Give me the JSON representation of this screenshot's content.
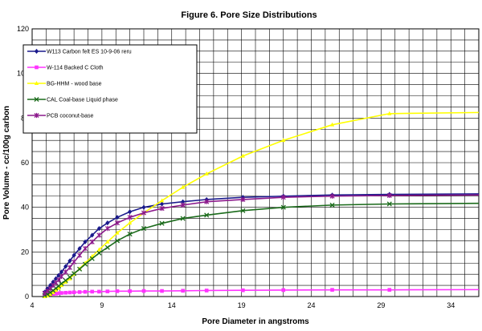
{
  "chart_data": {
    "type": "line",
    "title": "Figure 6. Pore Size Distributions",
    "xlabel": "Pore Diameter in angstroms",
    "ylabel": "Pore Volume - cc/100g carbon",
    "xlim": [
      4,
      36
    ],
    "ylim": [
      0,
      120
    ],
    "xticks": [
      4,
      9,
      14,
      19,
      24,
      29,
      34
    ],
    "yticks": [
      0,
      20,
      40,
      60,
      80,
      100,
      120
    ],
    "x_minor_step": 1,
    "y_minor_step": 5,
    "grid": true,
    "legend_position": "top-left",
    "series": [
      {
        "name": "W113 Carbon felt ES 10-9-06 reru",
        "color": "#1a1a8c",
        "marker": "diamond",
        "x": [
          4.9,
          5.1,
          5.3,
          5.5,
          5.7,
          5.9,
          6.1,
          6.4,
          6.7,
          7.0,
          7.4,
          7.8,
          8.3,
          8.8,
          9.4,
          10.1,
          11.0,
          12.0,
          13.3,
          14.8,
          16.5,
          19.1,
          22.0,
          25.5,
          29.6,
          36.0
        ],
        "y": [
          2,
          3.5,
          5,
          6.5,
          8,
          9.5,
          11,
          13.5,
          16,
          18.5,
          21.5,
          24.5,
          27.5,
          30.5,
          33,
          35.5,
          38,
          40,
          41.5,
          42.5,
          43.5,
          44.5,
          45,
          45.5,
          45.8,
          46
        ]
      },
      {
        "name": "W-114 Backed C Cloth",
        "color": "#ff33ff",
        "marker": "square",
        "x": [
          4.9,
          5.1,
          5.3,
          5.5,
          5.7,
          5.9,
          6.1,
          6.4,
          6.7,
          7.0,
          7.4,
          7.8,
          8.3,
          8.8,
          9.4,
          10.1,
          11.0,
          12.0,
          13.3,
          14.8,
          16.5,
          19.1,
          22.0,
          25.5,
          29.6,
          36.0
        ],
        "y": [
          0.5,
          0.8,
          1,
          1.2,
          1.3,
          1.5,
          1.6,
          1.7,
          1.8,
          1.9,
          2,
          2.1,
          2.2,
          2.2,
          2.3,
          2.4,
          2.4,
          2.5,
          2.5,
          2.6,
          2.7,
          2.8,
          2.9,
          3,
          3,
          3.1
        ]
      },
      {
        "name": "BG-HHM - wood base",
        "color": "#ffff00",
        "marker": "triangle",
        "x": [
          4.9,
          5.1,
          5.3,
          5.5,
          5.7,
          5.9,
          6.1,
          6.4,
          6.7,
          7.0,
          7.4,
          7.8,
          8.3,
          8.8,
          9.4,
          10.1,
          11.0,
          12.0,
          13.3,
          14.8,
          16.5,
          19.1,
          22.0,
          25.5,
          29.6,
          36.0
        ],
        "y": [
          0,
          0.3,
          1,
          1.8,
          2.8,
          3.8,
          5,
          6.5,
          8,
          10,
          12.5,
          15,
          18,
          21,
          24.5,
          28.5,
          33,
          37.5,
          43,
          49,
          55,
          63,
          70,
          77,
          82,
          82.5
        ]
      },
      {
        "name": "CAL Coal-base Liquid phase",
        "color": "#1b6b1b",
        "marker": "x",
        "x": [
          4.9,
          5.1,
          5.3,
          5.5,
          5.7,
          5.9,
          6.1,
          6.4,
          6.7,
          7.0,
          7.4,
          7.8,
          8.3,
          8.8,
          9.4,
          10.1,
          11.0,
          12.0,
          13.3,
          14.8,
          16.5,
          19.1,
          22.0,
          25.5,
          29.6,
          36.0
        ],
        "y": [
          0.5,
          1,
          1.8,
          2.7,
          3.7,
          4.7,
          5.8,
          7.2,
          8.7,
          10.3,
          12.3,
          14.5,
          17,
          19.5,
          22,
          25,
          28,
          30.5,
          32.8,
          35,
          36.5,
          38.5,
          40,
          41,
          41.5,
          41.8
        ]
      },
      {
        "name": "PCB coconut-base",
        "color": "#8c1a8c",
        "marker": "asterisk",
        "x": [
          4.9,
          5.1,
          5.3,
          5.5,
          5.7,
          5.9,
          6.1,
          6.4,
          6.7,
          7.0,
          7.4,
          7.8,
          8.3,
          8.8,
          9.4,
          10.1,
          11.0,
          12.0,
          13.3,
          14.8,
          16.5,
          19.1,
          22.0,
          25.5,
          29.6,
          36.0
        ],
        "y": [
          1.5,
          2.5,
          3.5,
          5,
          6.2,
          7.5,
          9,
          11,
          13,
          15.5,
          18.5,
          21.5,
          24.5,
          27.5,
          30.5,
          33,
          35.5,
          37.5,
          39.5,
          41,
          42.5,
          43.5,
          44.5,
          45,
          45.3,
          45.5
        ]
      }
    ]
  }
}
